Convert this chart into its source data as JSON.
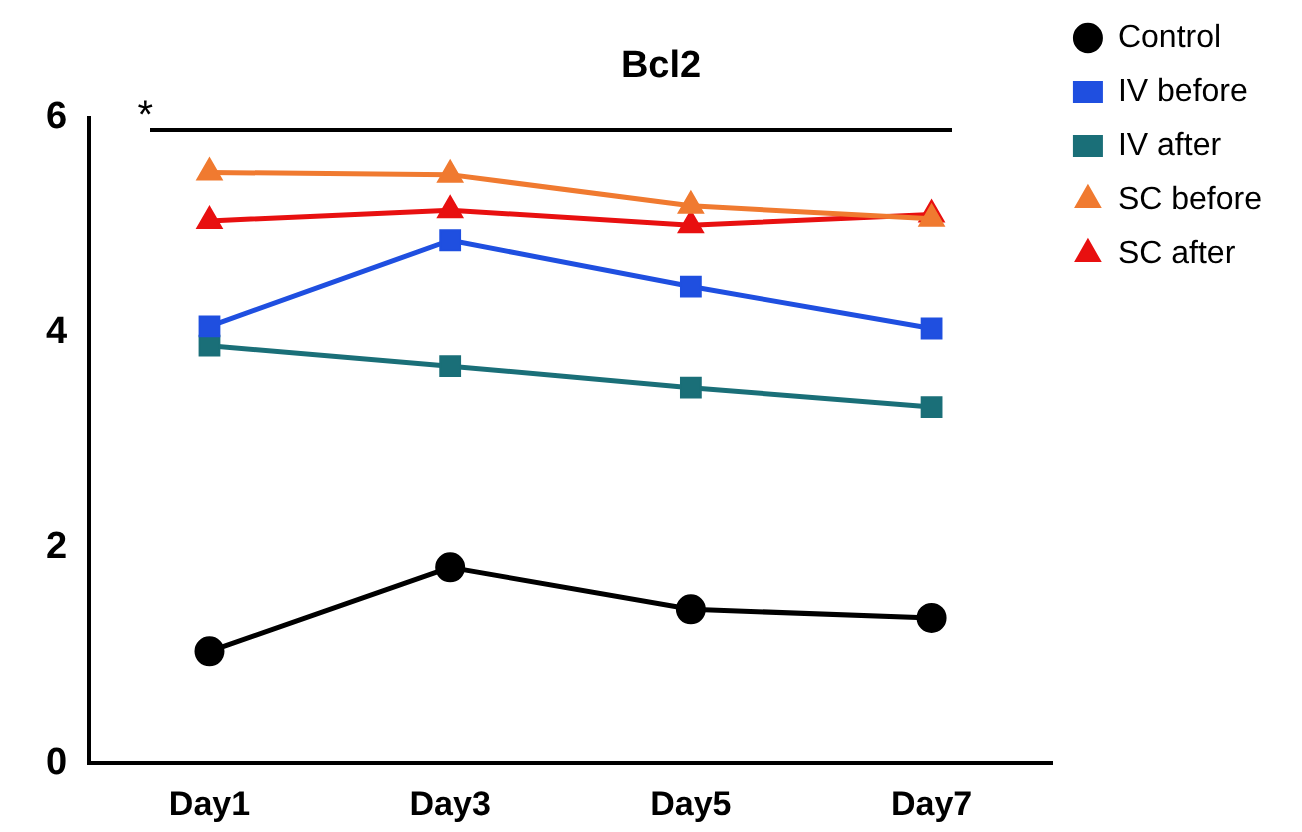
{
  "chart_data": {
    "type": "line",
    "title": "Bcl2",
    "categories": [
      "Day1",
      "Day3",
      "Day5",
      "Day7"
    ],
    "series": [
      {
        "name": "Control",
        "color": "#000000",
        "marker": "circle",
        "values": [
          1.04,
          1.82,
          1.43,
          1.35
        ]
      },
      {
        "name": "IV before",
        "color": "#1f4fe0",
        "marker": "square",
        "values": [
          4.06,
          4.86,
          4.43,
          4.04
        ]
      },
      {
        "name": "IV after",
        "color": "#1a6f78",
        "marker": "square",
        "values": [
          3.88,
          3.69,
          3.49,
          3.31
        ]
      },
      {
        "name": "SC before",
        "color": "#f07a30",
        "marker": "triangle",
        "values": [
          5.49,
          5.47,
          5.18,
          5.06
        ]
      },
      {
        "name": "SC after",
        "color": "#e81010",
        "marker": "triangle",
        "values": [
          5.04,
          5.14,
          5.0,
          5.1
        ]
      }
    ],
    "ylim": [
      0,
      6
    ],
    "yticks": [
      0,
      2,
      4,
      6
    ],
    "grid": false,
    "legend": "right",
    "ref_lines": [
      {
        "axis": "y",
        "value": 5.88,
        "label": "*"
      }
    ]
  }
}
